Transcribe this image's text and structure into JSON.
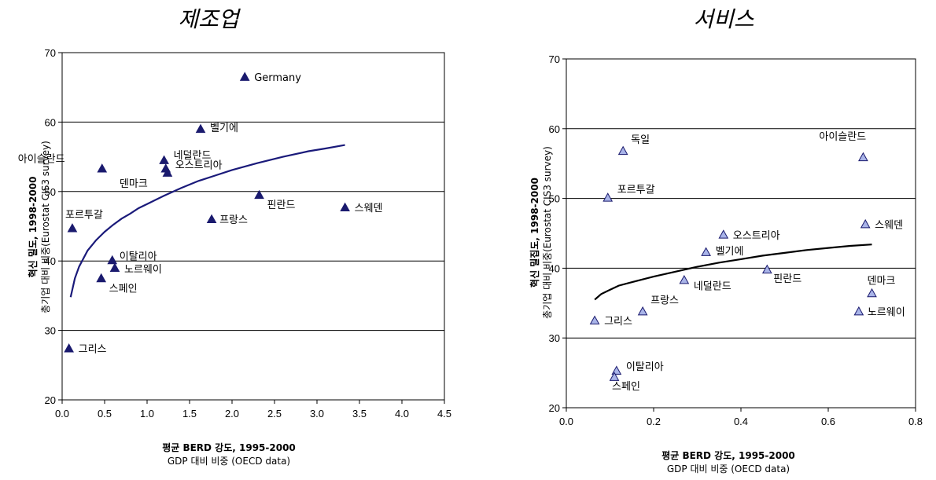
{
  "chart_data": [
    {
      "type": "scatter",
      "title": "제조업",
      "xlabel": "평균 BERD 강도, 1995-2000",
      "xlabel_sub": "GDP 대비 비중 (OECD data)",
      "ylabel": "혁신 밀도, 1998-2000",
      "ylabel_sub": "총기업 대비 비중(Eurostat CIS3 survey)",
      "xlim": [
        0,
        4.5
      ],
      "ylim": [
        20,
        70
      ],
      "xticks": [
        "0.0",
        "0.5",
        "1.0",
        "1.5",
        "2.0",
        "2.5",
        "3.0",
        "3.5",
        "4.0",
        "4.5"
      ],
      "yticks": [
        "20",
        "30",
        "40",
        "50",
        "60",
        "70"
      ],
      "marker_color": "#1a1a6e",
      "curve_color": "#1a1a7a",
      "points": [
        {
          "label": "Germany",
          "x": 2.15,
          "y": 66.5
        },
        {
          "label": "벨기에",
          "x": 1.63,
          "y": 59.0
        },
        {
          "label": "네덜란드",
          "x": 1.2,
          "y": 54.5
        },
        {
          "label": "오스트리아",
          "x": 1.22,
          "y": 53.3
        },
        {
          "label": "아이슬란드",
          "x": 0.47,
          "y": 53.3
        },
        {
          "label": "덴마크",
          "x": 1.24,
          "y": 52.7
        },
        {
          "label": "핀란드",
          "x": 2.32,
          "y": 49.5
        },
        {
          "label": "스웨덴",
          "x": 3.33,
          "y": 47.7
        },
        {
          "label": "프랑스",
          "x": 1.76,
          "y": 46.0
        },
        {
          "label": "포르투갈",
          "x": 0.12,
          "y": 44.7
        },
        {
          "label": "이탈리아",
          "x": 0.59,
          "y": 40.1
        },
        {
          "label": "노르웨이",
          "x": 0.62,
          "y": 39.0
        },
        {
          "label": "스페인",
          "x": 0.46,
          "y": 37.5
        },
        {
          "label": "그리스",
          "x": 0.08,
          "y": 27.4
        }
      ],
      "curve": [
        [
          0.1,
          34.8
        ],
        [
          0.15,
          37.5
        ],
        [
          0.2,
          39.2
        ],
        [
          0.3,
          41.5
        ],
        [
          0.4,
          43.0
        ],
        [
          0.5,
          44.2
        ],
        [
          0.6,
          45.2
        ],
        [
          0.7,
          46.1
        ],
        [
          0.8,
          46.8
        ],
        [
          0.9,
          47.6
        ],
        [
          1.0,
          48.2
        ],
        [
          1.2,
          49.4
        ],
        [
          1.4,
          50.5
        ],
        [
          1.6,
          51.5
        ],
        [
          1.8,
          52.3
        ],
        [
          2.0,
          53.1
        ],
        [
          2.3,
          54.1
        ],
        [
          2.6,
          55.0
        ],
        [
          2.9,
          55.8
        ],
        [
          3.1,
          56.2
        ],
        [
          3.33,
          56.7
        ]
      ]
    },
    {
      "type": "scatter",
      "title": "서비스",
      "xlabel": "평균 BERD 강도, 1995-2000",
      "xlabel_sub": "GDP 대비 비중 (OECD data)",
      "ylabel": "혁신 밀집도, 1998-2000",
      "ylabel_sub": "총기업 대비 비중(Eurostat CIS3 survey)",
      "xlim": [
        0,
        0.8
      ],
      "ylim": [
        20,
        70
      ],
      "xticks": [
        "0.0",
        "0.2",
        "0.4",
        "0.6",
        "0.8"
      ],
      "yticks": [
        "20",
        "30",
        "40",
        "50",
        "60",
        "70"
      ],
      "marker_color": "#a9b4e8",
      "curve_color": "#000000",
      "points": [
        {
          "label": "독일",
          "x": 0.13,
          "y": 56.8
        },
        {
          "label": "아이슬란드",
          "x": 0.68,
          "y": 55.9
        },
        {
          "label": "포르투갈",
          "x": 0.095,
          "y": 50.1
        },
        {
          "label": "스웨덴",
          "x": 0.685,
          "y": 46.3
        },
        {
          "label": "오스트리아",
          "x": 0.36,
          "y": 44.8
        },
        {
          "label": "벨기에",
          "x": 0.32,
          "y": 42.3
        },
        {
          "label": "핀란드",
          "x": 0.46,
          "y": 39.8
        },
        {
          "label": "네덜란드",
          "x": 0.27,
          "y": 38.3
        },
        {
          "label": "덴마크",
          "x": 0.7,
          "y": 36.4
        },
        {
          "label": "프랑스",
          "x": 0.175,
          "y": 33.8
        },
        {
          "label": "노르웨이",
          "x": 0.67,
          "y": 33.8
        },
        {
          "label": "그리스",
          "x": 0.065,
          "y": 32.5
        },
        {
          "label": "이탈리아",
          "x": 0.115,
          "y": 25.3
        },
        {
          "label": "스페인",
          "x": 0.11,
          "y": 24.4
        }
      ],
      "curve": [
        [
          0.065,
          35.5
        ],
        [
          0.08,
          36.3
        ],
        [
          0.1,
          36.9
        ],
        [
          0.12,
          37.5
        ],
        [
          0.15,
          38.0
        ],
        [
          0.2,
          38.8
        ],
        [
          0.25,
          39.5
        ],
        [
          0.3,
          40.2
        ],
        [
          0.35,
          40.8
        ],
        [
          0.4,
          41.3
        ],
        [
          0.45,
          41.8
        ],
        [
          0.5,
          42.2
        ],
        [
          0.55,
          42.6
        ],
        [
          0.6,
          42.9
        ],
        [
          0.65,
          43.2
        ],
        [
          0.7,
          43.4
        ]
      ]
    }
  ]
}
